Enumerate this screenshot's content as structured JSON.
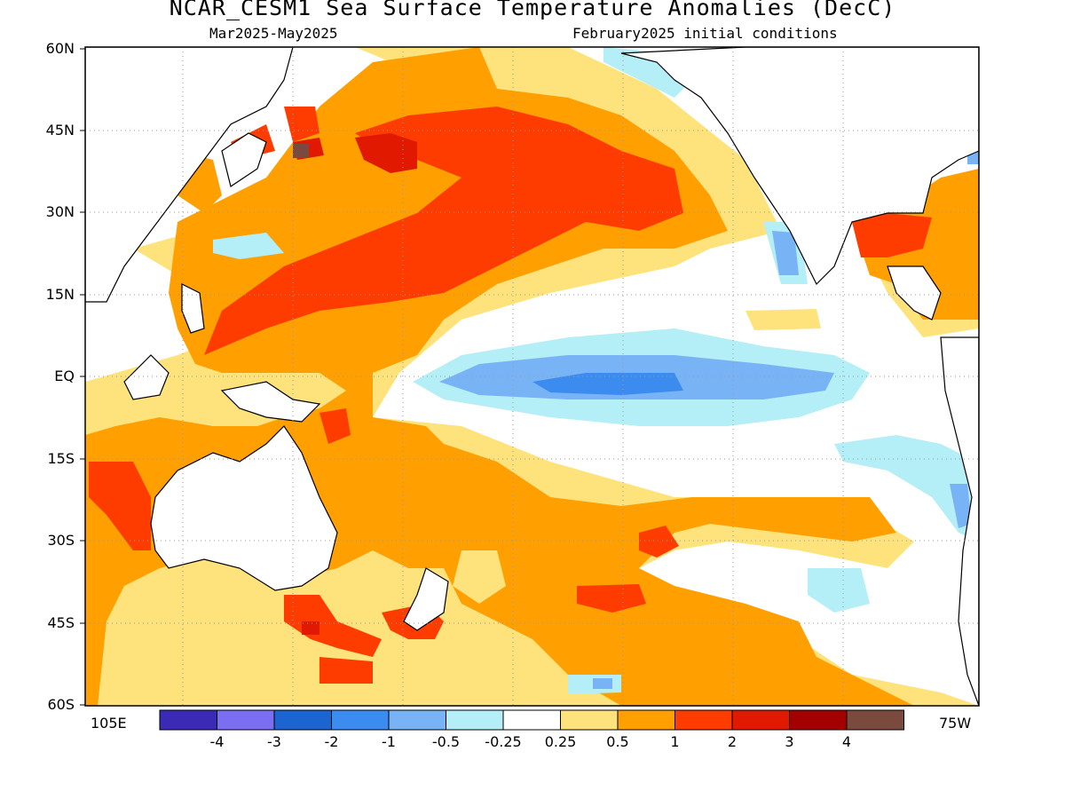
{
  "title": "NCAR_CESM1 Sea Surface Temperature Anomalies (DecC)",
  "subtitle_left": "Mar2025-May2025",
  "subtitle_right": "February2025 initial conditions",
  "lat_labels": [
    "60N",
    "45N",
    "30N",
    "15N",
    "EQ",
    "15S",
    "30S",
    "45S",
    "60S"
  ],
  "lon_left_label": "105E",
  "lon_right_label": "75W",
  "colorbar": {
    "colors": [
      "#3b2ab5",
      "#7b6ef0",
      "#1c64d0",
      "#3c8cf0",
      "#78b4f5",
      "#b4eef6",
      "#ffffff",
      "#fee37d",
      "#ff9f00",
      "#ff3c00",
      "#e11900",
      "#a50000",
      "#7a4a3f"
    ],
    "labels": [
      "-4",
      "-3",
      "-2",
      "-1",
      "-0.5",
      "-0.25",
      "0.25",
      "0.5",
      "1",
      "2",
      "3",
      "4"
    ]
  },
  "palette": {
    "ocean_neutral": "#ffffff",
    "weak_warm": "#fee37d",
    "warm": "#ff9f00",
    "strong_warm": "#ff3c00",
    "very_strong_warm": "#e11900",
    "extreme_warm": "#a50000",
    "max_warm": "#7a4a3f",
    "weak_cool": "#b4eef6",
    "cool": "#78b4f5",
    "strong_cool": "#3c8cf0",
    "coast": "#000000",
    "grid": "#9a9a9a"
  }
}
